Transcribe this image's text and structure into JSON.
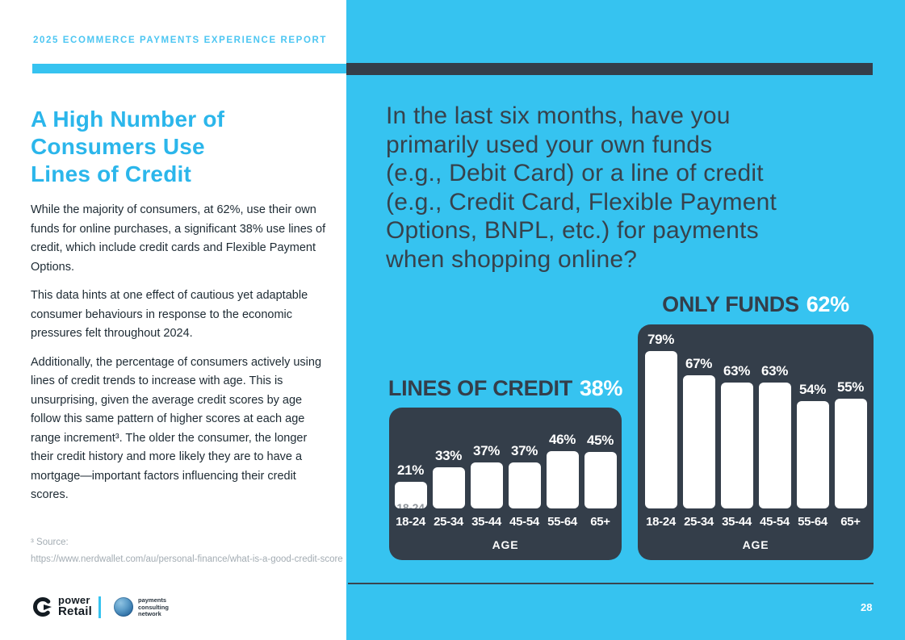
{
  "page": {
    "eyebrow": "2025 ECOMMERCE PAYMENTS EXPERIENCE REPORT",
    "page_number": "28"
  },
  "left": {
    "title_lines": [
      "A High Number of",
      "Consumers Use",
      "Lines of Credit"
    ],
    "paragraphs": [
      "While the majority of consumers, at 62%, use their own funds for online purchases, a significant 38% use lines of credit, which include credit cards and Flexible Payment Options.",
      "This data hints at one effect of cautious yet adaptable consumer behaviours in response to the economic pressures felt throughout 2024.",
      "Additionally, the percentage of consumers actively using lines of credit trends to increase with age. This is unsurprising, given the average credit scores by age follow this same pattern of higher scores at each age range increment³. The older the consumer, the longer their credit history and more likely they are to have a mortgage—important factors influencing their credit scores."
    ],
    "footnote_label": "³ Source:",
    "footnote_url": "https://www.nerdwallet.com/au/personal-finance/what-is-a-good-credit-score",
    "logos": {
      "power_retail_line1": "power",
      "power_retail_line2": "Retail",
      "pcn_lines": [
        "payments",
        "consulting",
        "network"
      ]
    }
  },
  "right": {
    "question_lines": [
      "In the last six months, have you",
      "primarily used your own funds",
      "(e.g., Debit Card) or a line of credit",
      "(e.g., Credit Card, Flexible Payment",
      "Options, BNPL, etc.) for payments",
      "when shopping online?"
    ]
  },
  "chart_data": [
    {
      "type": "bar",
      "title": "LINES OF CREDIT",
      "headline_value": "38%",
      "categories": [
        "18-24",
        "25-34",
        "35-44",
        "45-54",
        "55-64",
        "65+"
      ],
      "values": [
        21,
        33,
        37,
        37,
        46,
        45
      ],
      "value_labels": [
        "21%",
        "33%",
        "37%",
        "37%",
        "46%",
        "45%"
      ],
      "xlabel": "AGE",
      "ylim": [
        0,
        100
      ],
      "legend": "none",
      "grid": false,
      "ghost_label": "18-24"
    },
    {
      "type": "bar",
      "title": "ONLY FUNDS",
      "headline_value": "62%",
      "categories": [
        "18-24",
        "25-34",
        "35-44",
        "45-54",
        "55-64",
        "65+"
      ],
      "values": [
        79,
        67,
        63,
        63,
        54,
        55
      ],
      "value_labels": [
        "79%",
        "67%",
        "63%",
        "63%",
        "54%",
        "55%"
      ],
      "xlabel": "AGE",
      "ylim": [
        0,
        100
      ],
      "legend": "none",
      "grid": false
    }
  ],
  "colors": {
    "accent_cyan": "#36C3F0",
    "dark_charcoal": "#343E4A",
    "heading_cyan": "#2BB6EB",
    "eyebrow_cyan": "#4CC6F2",
    "body_text": "#1D2A33",
    "muted_gray": "#A3ACB3",
    "bar_white": "#FFFFFF"
  }
}
